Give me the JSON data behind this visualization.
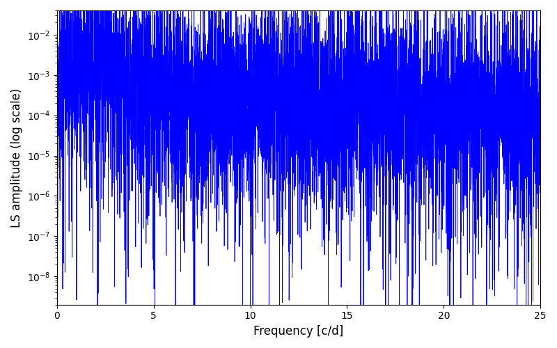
{
  "title": "",
  "xlabel": "Frequency [c/d]",
  "ylabel": "LS amplitude (log scale)",
  "line_color": "#0000ff",
  "line_width": 0.6,
  "xlim": [
    0,
    25
  ],
  "ylim_low": 2e-09,
  "ylim_high": 0.04,
  "xticks": [
    0,
    5,
    10,
    15,
    20,
    25
  ],
  "background_color": "#ffffff",
  "freq_max": 25.0,
  "n_points": 6000,
  "seed": 99
}
